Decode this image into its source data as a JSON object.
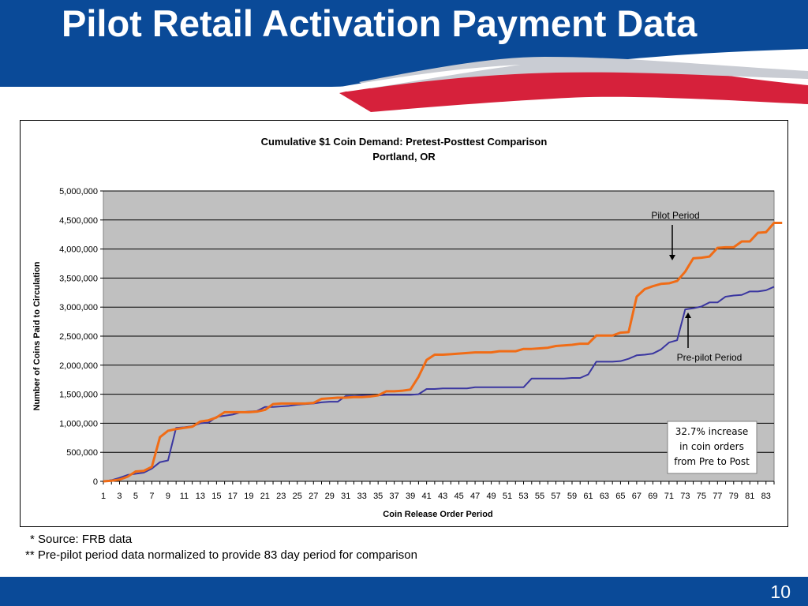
{
  "slide": {
    "title": "Pilot Retail Activation Payment Data",
    "footnote_1": "* Source: FRB data",
    "footnote_2": "** Pre-pilot period data normalized to provide 83 day period for comparison",
    "page_number": "10"
  },
  "colors": {
    "brand_blue": "#0a4a98",
    "brand_red": "#d6213b",
    "plot_background": "#c0c0c0",
    "pilot_series": "#f06c16",
    "prepilot_series": "#3a36a0"
  },
  "chart_data": {
    "type": "line",
    "title": "Cumulative $1 Coin Demand: Pretest-Posttest Comparison",
    "subtitle": "Portland, OR",
    "xlabel": "Coin Release Order Period",
    "ylabel": "Number of Coins Paid to Circulation",
    "xlim": [
      1,
      84
    ],
    "ylim": [
      0,
      5000000
    ],
    "y_ticks": [
      "0",
      "500,000",
      "1,000,000",
      "1,500,000",
      "2,000,000",
      "2,500,000",
      "3,000,000",
      "3,500,000",
      "4,000,000",
      "4,500,000",
      "5,000,000"
    ],
    "x_ticks": [
      "1",
      "3",
      "5",
      "7",
      "9",
      "11",
      "13",
      "15",
      "17",
      "19",
      "21",
      "23",
      "25",
      "27",
      "29",
      "31",
      "33",
      "35",
      "37",
      "39",
      "41",
      "43",
      "45",
      "47",
      "49",
      "51",
      "53",
      "55",
      "57",
      "59",
      "61",
      "63",
      "65",
      "67",
      "69",
      "71",
      "73",
      "75",
      "77",
      "79",
      "81",
      "83"
    ],
    "grid": "horizontal",
    "series": [
      {
        "name": "Pilot Period",
        "values": [
          0,
          10000,
          30000,
          80000,
          170000,
          180000,
          250000,
          760000,
          870000,
          900000,
          920000,
          940000,
          1030000,
          1050000,
          1100000,
          1190000,
          1190000,
          1190000,
          1190000,
          1200000,
          1230000,
          1330000,
          1340000,
          1340000,
          1340000,
          1340000,
          1350000,
          1420000,
          1430000,
          1440000,
          1440000,
          1450000,
          1450000,
          1460000,
          1480000,
          1550000,
          1550000,
          1560000,
          1580000,
          1800000,
          2090000,
          2180000,
          2180000,
          2190000,
          2200000,
          2210000,
          2220000,
          2220000,
          2220000,
          2240000,
          2240000,
          2240000,
          2280000,
          2280000,
          2290000,
          2300000,
          2330000,
          2340000,
          2350000,
          2370000,
          2370000,
          2510000,
          2510000,
          2510000,
          2560000,
          2570000,
          3180000,
          3310000,
          3360000,
          3400000,
          3410000,
          3450000,
          3610000,
          3840000,
          3850000,
          3870000,
          4020000,
          4030000,
          4030000,
          4130000,
          4130000,
          4280000,
          4290000,
          4450000,
          4450000
        ]
      },
      {
        "name": "Pre-pilot Period",
        "values": [
          0,
          20000,
          60000,
          110000,
          130000,
          150000,
          220000,
          330000,
          360000,
          920000,
          930000,
          950000,
          1000000,
          1010000,
          1110000,
          1130000,
          1150000,
          1190000,
          1200000,
          1210000,
          1280000,
          1280000,
          1290000,
          1300000,
          1320000,
          1330000,
          1340000,
          1360000,
          1370000,
          1370000,
          1470000,
          1470000,
          1480000,
          1480000,
          1480000,
          1490000,
          1490000,
          1490000,
          1490000,
          1500000,
          1590000,
          1590000,
          1600000,
          1600000,
          1600000,
          1600000,
          1620000,
          1620000,
          1620000,
          1620000,
          1620000,
          1620000,
          1620000,
          1770000,
          1770000,
          1770000,
          1770000,
          1770000,
          1780000,
          1780000,
          1840000,
          2060000,
          2060000,
          2060000,
          2070000,
          2110000,
          2170000,
          2180000,
          2200000,
          2270000,
          2390000,
          2430000,
          2960000,
          2980000,
          3010000,
          3080000,
          3080000,
          3180000,
          3200000,
          3210000,
          3270000,
          3270000,
          3290000,
          3350000
        ]
      }
    ],
    "annotations": {
      "pilot_label": "Pilot Period",
      "prepilot_label": "Pre-pilot Period",
      "callout_lines": [
        "32.7% increase",
        "in coin orders",
        "from Pre to Post"
      ]
    }
  }
}
